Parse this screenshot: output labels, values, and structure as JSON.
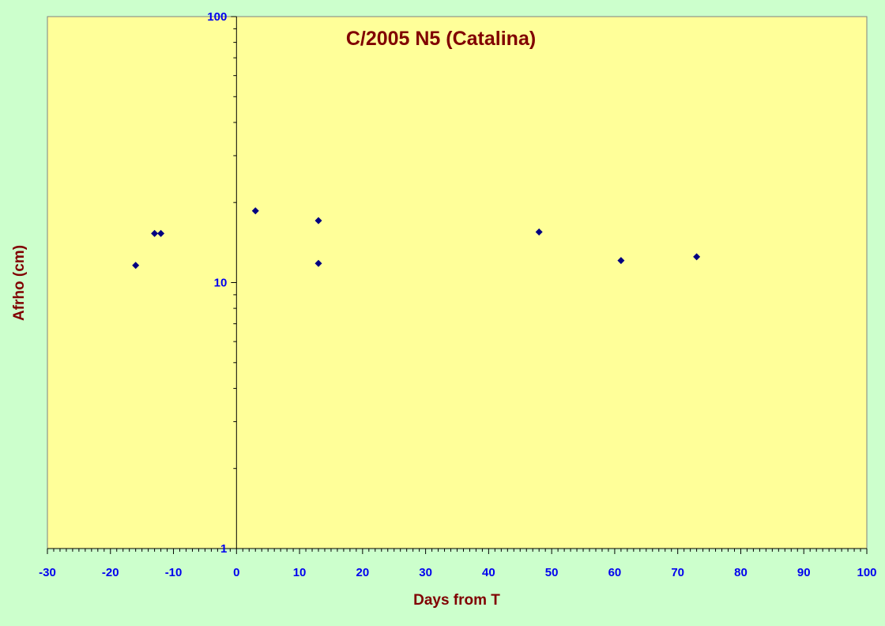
{
  "chart_data": {
    "type": "scatter",
    "title": "C/2005 N5 (Catalina)",
    "xlabel": "Days from T",
    "ylabel": "Afrho (cm)",
    "xlim": [
      -30,
      100
    ],
    "ylim": [
      1,
      100
    ],
    "yscale": "log",
    "grid": false,
    "legend": "none",
    "x_ticks": [
      -30,
      -20,
      -10,
      0,
      10,
      20,
      30,
      40,
      50,
      60,
      70,
      80,
      90,
      100
    ],
    "y_ticks": [
      1,
      10,
      100
    ],
    "series": [
      {
        "x": [
          -16,
          -13,
          -12,
          3,
          13,
          13,
          48,
          61,
          73
        ],
        "y": [
          11.6,
          15.3,
          15.3,
          18.6,
          17.1,
          11.8,
          15.5,
          12.1,
          12.5
        ]
      }
    ],
    "colors": {
      "background": "#ccffcc",
      "plot_area": "#ffff99",
      "marker": "#000080",
      "tick_labels": "#0000ee",
      "titles": "#800000",
      "axis": "#000000"
    }
  }
}
